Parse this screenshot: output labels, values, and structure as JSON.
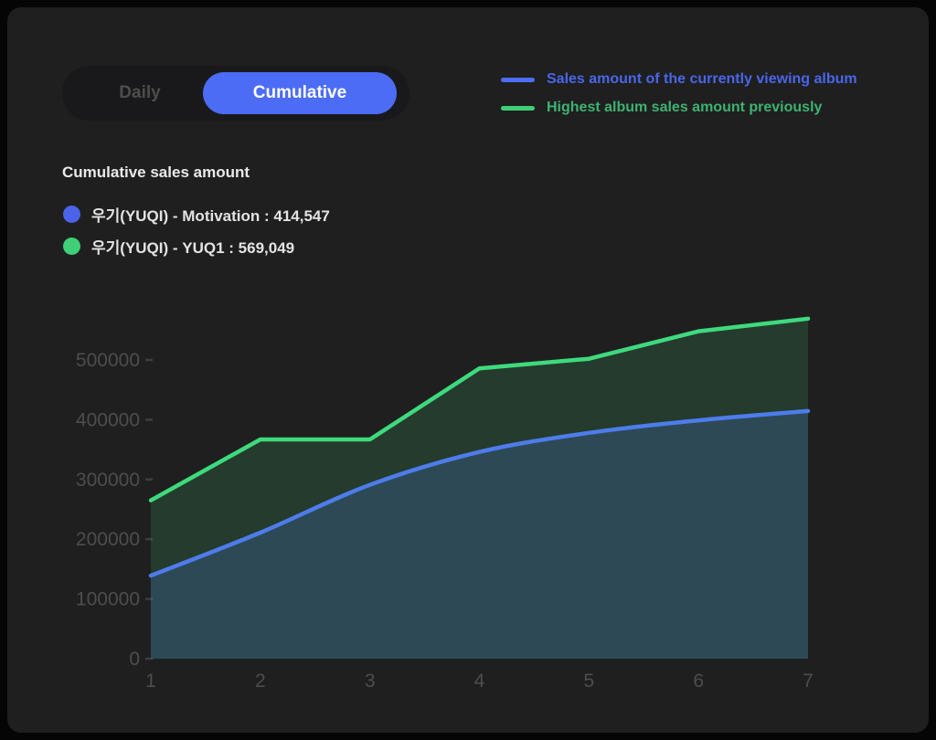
{
  "toggle": {
    "daily_label": "Daily",
    "cumulative_label": "Cumulative",
    "active": "Cumulative",
    "active_bg_color": "#4c6cf5",
    "inactive_text_color": "#4d4d4d"
  },
  "legend": {
    "items": [
      {
        "label": "Sales amount of the currently viewing album",
        "swatch_color": "#4c6ef5",
        "text_color": "#4a66e8"
      },
      {
        "label": "Highest album sales amount previously",
        "swatch_color": "#3ecf77",
        "text_color": "#3eb270"
      }
    ]
  },
  "summary": {
    "title": "Cumulative sales amount",
    "series": [
      {
        "label": "우기(YUQI) - Motivation : 414,547",
        "dot_color": "#4a63e8"
      },
      {
        "label": "우기(YUQI) - YUQ1 : 569,049",
        "dot_color": "#3ecf77"
      }
    ]
  },
  "chart_data": {
    "type": "area",
    "title": "Cumulative sales amount",
    "x": [
      1,
      2,
      3,
      4,
      5,
      6,
      7
    ],
    "xlabel": "",
    "ylabel": "",
    "yticks": [
      0,
      100000,
      200000,
      300000,
      400000,
      500000
    ],
    "ylim": [
      0,
      583000
    ],
    "grid": false,
    "legend_position": "top-right",
    "series": [
      {
        "name": "Highest album sales amount previously",
        "album": "우기(YUQI) - YUQ1",
        "total": 569049,
        "values": [
          265000,
          367000,
          367000,
          486000,
          502000,
          548000,
          569049
        ],
        "line_color": "#3eda7d",
        "fill_color": "rgba(62,207,119,0.16)",
        "smooth": false
      },
      {
        "name": "Sales amount of the currently viewing album",
        "album": "우기(YUQI) - Motivation",
        "total": 414547,
        "values": [
          139000,
          211000,
          291000,
          346000,
          378000,
          399000,
          414547
        ],
        "line_color": "#4d7ceb",
        "fill_color": "rgba(78,124,232,0.22)",
        "smooth": true
      }
    ],
    "axis_label_color": "#4d4d4d",
    "tick_mark_color": "#3e3e3e"
  }
}
